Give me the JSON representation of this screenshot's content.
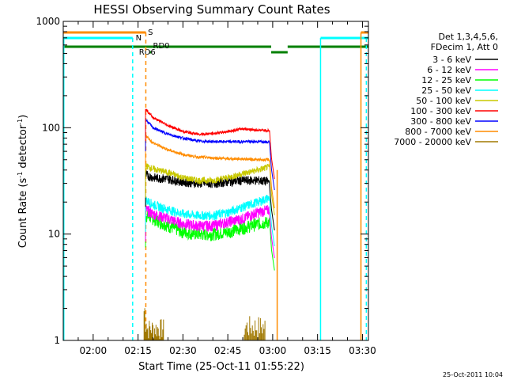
{
  "chart_data": {
    "type": "line",
    "title": "HESSI Observing Summary Count Rates",
    "xlabel": "Start Time (25-Oct-11 01:55:22)",
    "ylabel_main": "Count Rate (s",
    "ylabel_sup": "-1",
    "ylabel_mid": " detector",
    "ylabel_sup2": "-1",
    "ylabel_end": ")",
    "yscale": "log",
    "xlim_min": [
      115,
      217
    ],
    "ylim": [
      1,
      1000
    ],
    "x_ticks": [
      {
        "v": 125,
        "label": "02:00"
      },
      {
        "v": 140,
        "label": "02:15"
      },
      {
        "v": 155,
        "label": "02:30"
      },
      {
        "v": 170,
        "label": "02:45"
      },
      {
        "v": 185,
        "label": "03:00"
      },
      {
        "v": 200,
        "label": "03:15"
      },
      {
        "v": 215,
        "label": "03:30"
      }
    ],
    "y_ticks": [
      {
        "v": 1,
        "label": "1"
      },
      {
        "v": 10,
        "label": "10"
      },
      {
        "v": 100,
        "label": "100"
      },
      {
        "v": 1000,
        "label": "1000"
      }
    ],
    "legend_header": [
      "Det 1,3,4,5,6,",
      "FDecim 1, Att 0"
    ],
    "series": [
      {
        "name": "3 - 6 keV",
        "color": "#000000",
        "x": [
          142.5,
          145,
          150,
          155,
          160,
          165,
          170,
          175,
          180,
          184
        ],
        "y": [
          36,
          34,
          33,
          31,
          30,
          30,
          31,
          32,
          32,
          31
        ]
      },
      {
        "name": "6 - 12 keV",
        "color": "#ff00ff",
        "x": [
          142.5,
          145,
          150,
          155,
          160,
          165,
          170,
          175,
          180,
          184
        ],
        "y": [
          17,
          15.5,
          14,
          12.5,
          12,
          12,
          13,
          14,
          16,
          17
        ]
      },
      {
        "name": "12 - 25 keV",
        "color": "#00ff00",
        "x": [
          142.5,
          145,
          150,
          155,
          160,
          165,
          170,
          175,
          180,
          184
        ],
        "y": [
          15,
          14,
          12,
          10.5,
          10,
          10,
          10.5,
          11.5,
          12.5,
          13
        ]
      },
      {
        "name": "25 - 50 keV",
        "color": "#00ffff",
        "x": [
          142.5,
          145,
          150,
          155,
          160,
          165,
          170,
          175,
          180,
          184
        ],
        "y": [
          21,
          19,
          17,
          15.5,
          15,
          15,
          16,
          18,
          20,
          22
        ]
      },
      {
        "name": "50 - 100 keV",
        "color": "#c8c800",
        "x": [
          142.5,
          145,
          150,
          155,
          160,
          165,
          170,
          175,
          180,
          184
        ],
        "y": [
          44,
          41,
          38,
          34,
          32,
          32,
          34,
          37,
          40,
          43
        ]
      },
      {
        "name": "100 - 300 keV",
        "color": "#ff0000",
        "x": [
          142.5,
          145,
          150,
          155,
          160,
          165,
          170,
          175,
          180,
          184
        ],
        "y": [
          150,
          125,
          105,
          92,
          87,
          88,
          92,
          98,
          95,
          94
        ]
      },
      {
        "name": "300 - 800 keV",
        "color": "#0000ff",
        "x": [
          142.5,
          145,
          150,
          155,
          160,
          165,
          170,
          175,
          180,
          184
        ],
        "y": [
          120,
          100,
          87,
          80,
          75,
          74,
          74,
          74,
          74,
          74
        ]
      },
      {
        "name": "800 - 7000 keV",
        "color": "#ff8c00",
        "x": [
          142.5,
          145,
          150,
          155,
          160,
          165,
          170,
          175,
          180,
          184
        ],
        "y": [
          85,
          72,
          62,
          56,
          53,
          52,
          51,
          51,
          50,
          50
        ]
      },
      {
        "name": "7000 - 20000 keV",
        "color": "#a07800",
        "x": [
          142,
          143,
          144,
          145,
          146,
          147,
          148,
          176,
          178,
          180,
          182
        ],
        "y": [
          2.8,
          1.5,
          1.3,
          1.6,
          1.3,
          1.2,
          1.3,
          1.2,
          1.5,
          1.3,
          1.8
        ]
      }
    ],
    "flag_labels": {
      "s": "S",
      "n": "N",
      "rd0": "RD0",
      "rd6": "RD6"
    },
    "datestamp": "25-Oct-2011 10:04"
  }
}
